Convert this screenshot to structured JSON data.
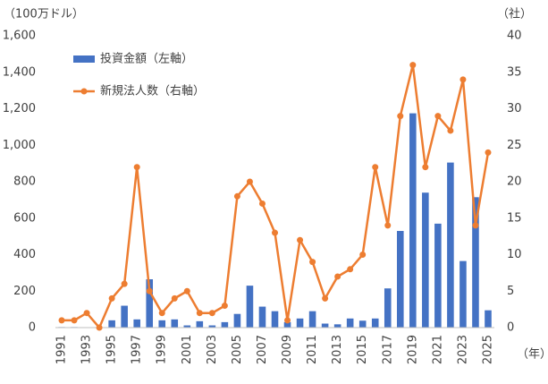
{
  "chart_data": {
    "type": "bar_line",
    "y_label": "（100万ドル）",
    "y2_label": "（社）",
    "x_label": "（年）",
    "categories": [
      "1991",
      null,
      "1993",
      null,
      "1995",
      null,
      "1997",
      null,
      "1999",
      null,
      "2001",
      null,
      "2003",
      null,
      "2005",
      null,
      "2007",
      null,
      "2009",
      null,
      "2011",
      null,
      "2013",
      null,
      "2015",
      null,
      "2017",
      null,
      "2019",
      null,
      "2021",
      null,
      "2023",
      null,
      "2025"
    ],
    "series": [
      {
        "name": "投資金額（左軸）",
        "type": "bar",
        "color": "#4472c4",
        "values": [
          3,
          3,
          2,
          0,
          40,
          120,
          45,
          265,
          40,
          45,
          12,
          35,
          12,
          30,
          75,
          230,
          115,
          90,
          30,
          50,
          90,
          22,
          18,
          50,
          38,
          50,
          215,
          530,
          1175,
          740,
          570,
          905,
          365,
          715,
          95
        ]
      },
      {
        "name": "新規法人数（右軸）",
        "type": "line",
        "axis": "y2",
        "color": "#ed7d31",
        "values": [
          1,
          1,
          2,
          0,
          4,
          6,
          22,
          5,
          2,
          4,
          5,
          2,
          2,
          3,
          18,
          20,
          17,
          13,
          1,
          12,
          9,
          4,
          7,
          8,
          10,
          22,
          14,
          29,
          36,
          22,
          29,
          27,
          34,
          14,
          24
        ]
      }
    ],
    "ylim": [
      0,
      1600
    ],
    "yticks": [
      0,
      200,
      400,
      600,
      800,
      {
        "value": 1000,
        "label": "1,000"
      },
      {
        "value": 1200,
        "label": "1,200"
      },
      {
        "value": 1400,
        "label": "1,400"
      },
      {
        "value": 1600,
        "label": "1,600"
      }
    ],
    "y2lim": [
      0,
      40
    ],
    "y2ticks": [
      0,
      5,
      10,
      15,
      20,
      25,
      30,
      35,
      40
    ],
    "grid": false,
    "legend": "upper left"
  }
}
